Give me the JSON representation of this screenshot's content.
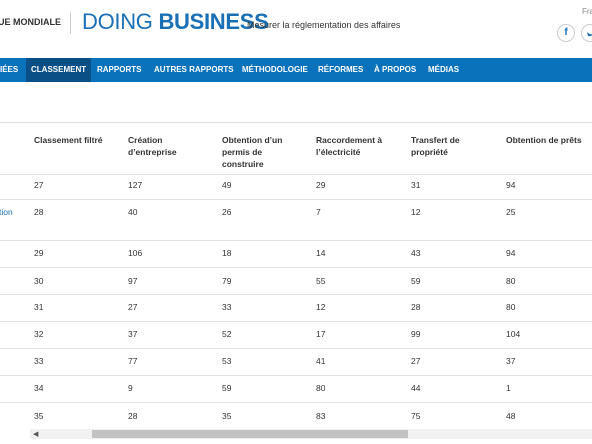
{
  "header": {
    "org": "UE MONDIALE",
    "logo_light": "DOING",
    "logo_bold": "BUSINESS",
    "tagline": "Mesurer la réglementation des affaires",
    "language": "Fra",
    "facebook": "f"
  },
  "nav": {
    "items": [
      "IÉES",
      "CLASSEMENT",
      "RAPPORTS",
      "AUTRES RAPPORTS",
      "MÉTHODOLOGIE",
      "RÉFORMES",
      "À PROPOS",
      "MÉDIAS"
    ],
    "active": 1
  },
  "table": {
    "columns": [
      "Classement filtré",
      "Création d’entreprise",
      "Obtention d’un permis de construire",
      "Raccordement à l’électricité",
      "Transfert de propriété",
      "Obtention de prêts"
    ],
    "cut_link": "tion",
    "rows": [
      [
        "27",
        "127",
        "49",
        "29",
        "31",
        "94"
      ],
      [
        "28",
        "40",
        "26",
        "7",
        "12",
        "25"
      ],
      [
        "29",
        "106",
        "18",
        "14",
        "43",
        "94"
      ],
      [
        "30",
        "97",
        "79",
        "55",
        "59",
        "80"
      ],
      [
        "31",
        "27",
        "33",
        "12",
        "28",
        "80"
      ],
      [
        "32",
        "37",
        "52",
        "17",
        "99",
        "104"
      ],
      [
        "33",
        "77",
        "53",
        "41",
        "27",
        "37"
      ],
      [
        "34",
        "9",
        "59",
        "80",
        "44",
        "1"
      ],
      [
        "35",
        "28",
        "35",
        "83",
        "75",
        "48"
      ]
    ]
  }
}
